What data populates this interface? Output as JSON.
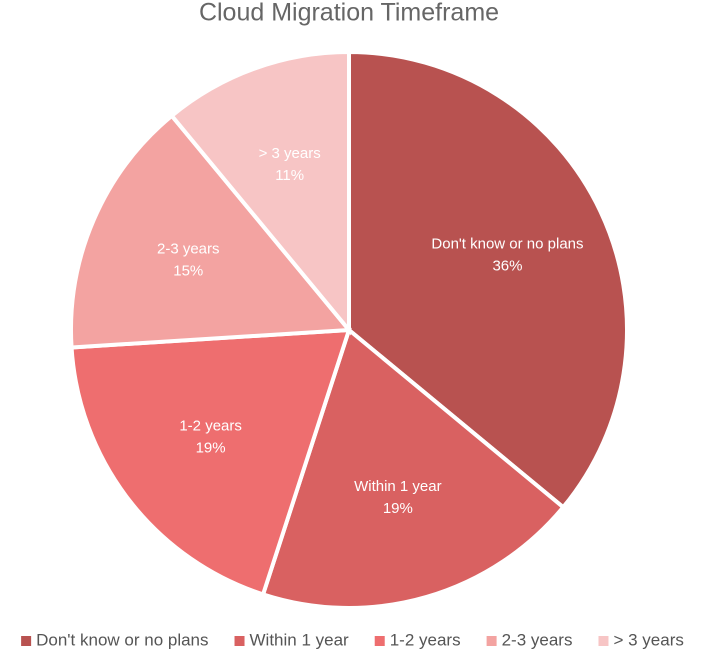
{
  "chart_data": {
    "type": "pie",
    "title": "Cloud Migration Timeframe",
    "categories": [
      "Don't know or no plans",
      "Within 1 year",
      "1-2 years",
      "2-3 years",
      "> 3 years"
    ],
    "values": [
      36,
      19,
      19,
      15,
      11
    ],
    "value_labels": [
      "36%",
      "19%",
      "19%",
      "15%",
      "11%"
    ],
    "colors": [
      "#b85250",
      "#d96161",
      "#ee6e6f",
      "#f3a3a1",
      "#f7c5c5"
    ],
    "legend": "bottom"
  }
}
